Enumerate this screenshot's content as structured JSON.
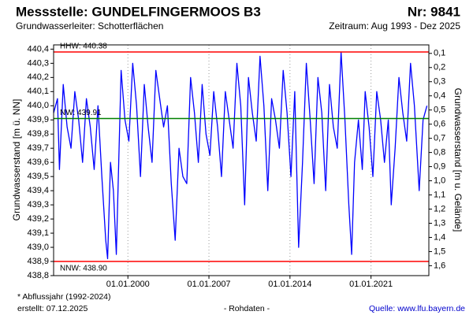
{
  "chart_data": {
    "type": "line",
    "title": "Messstelle: GUNDELFINGERMOOS B3",
    "number": "Nr: 9841",
    "aquifer": "Grundwasserleiter:  Schotterflächen",
    "period": "Zeitraum: Aug 1993 - Dez 2025",
    "y_label": "Grundwasserstand [m ü. NN]",
    "y2_label": "Grundwasserstand [m u. Gelände]",
    "footnote": "* Abflussjahr (1992-2024)",
    "created": "erstellt:  07.12.2025",
    "data_note": "- Rohdaten -",
    "source": "Quelle: www.lfu.bayern.de",
    "color": "#0000ff",
    "grid": "x",
    "xlim": [
      "1993-08-01",
      "2025-12-31"
    ],
    "xticks": [
      {
        "value": "2000-01-01",
        "label": "01.01.2000"
      },
      {
        "value": "2007-01-01",
        "label": "01.01.2007"
      },
      {
        "value": "2014-01-01",
        "label": "01.01.2014"
      },
      {
        "value": "2021-01-01",
        "label": "01.01.2021"
      }
    ],
    "ylim": [
      438.8,
      440.43
    ],
    "yticks": [
      {
        "value": 438.8,
        "label": "438,8"
      },
      {
        "value": 438.9,
        "label": "438,9"
      },
      {
        "value": 439.0,
        "label": "439,0"
      },
      {
        "value": 439.1,
        "label": "439,1"
      },
      {
        "value": 439.2,
        "label": "439,2"
      },
      {
        "value": 439.3,
        "label": "439,3"
      },
      {
        "value": 439.4,
        "label": "439,4"
      },
      {
        "value": 439.5,
        "label": "439,5"
      },
      {
        "value": 439.6,
        "label": "439,6"
      },
      {
        "value": 439.7,
        "label": "439,7"
      },
      {
        "value": 439.8,
        "label": "439,8"
      },
      {
        "value": 439.9,
        "label": "439,9"
      },
      {
        "value": 440.0,
        "label": "440,0"
      },
      {
        "value": 440.1,
        "label": "440,1"
      },
      {
        "value": 440.2,
        "label": "440,2"
      },
      {
        "value": 440.3,
        "label": "440,3"
      },
      {
        "value": 440.4,
        "label": "440,4"
      }
    ],
    "y2lim": [
      1.67,
      0.04
    ],
    "y2ticks": [
      {
        "value": 0.1,
        "label": "0,1"
      },
      {
        "value": 0.2,
        "label": "0,2"
      },
      {
        "value": 0.3,
        "label": "0,3"
      },
      {
        "value": 0.4,
        "label": "0,4"
      },
      {
        "value": 0.5,
        "label": "0,5"
      },
      {
        "value": 0.6,
        "label": "0,6"
      },
      {
        "value": 0.7,
        "label": "0,7"
      },
      {
        "value": 0.8,
        "label": "0,8"
      },
      {
        "value": 0.9,
        "label": "0,9"
      },
      {
        "value": 1.0,
        "label": "1,0"
      },
      {
        "value": 1.1,
        "label": "1,1"
      },
      {
        "value": 1.2,
        "label": "1,2"
      },
      {
        "value": 1.3,
        "label": "1,3"
      },
      {
        "value": 1.4,
        "label": "1,4"
      },
      {
        "value": 1.5,
        "label": "1,5"
      },
      {
        "value": 1.6,
        "label": "1,6"
      }
    ],
    "reference_lines": [
      {
        "label": "HHW: 440.38",
        "value": 440.38,
        "color": "#ff0000"
      },
      {
        "label": "NW: 439.91",
        "value": 439.91,
        "color": "#008000"
      },
      {
        "label": "NNW: 438.90",
        "value": 438.9,
        "color": "#ff0000"
      }
    ],
    "x": [
      "1993-08-01",
      "1993-12-01",
      "1994-02-01",
      "1994-06-01",
      "1994-10-01",
      "1995-02-01",
      "1995-06-01",
      "1995-10-01",
      "1996-02-01",
      "1996-06-01",
      "1996-10-01",
      "1997-02-01",
      "1997-06-01",
      "1997-10-01",
      "1998-02-01",
      "1998-04-01",
      "1998-07-01",
      "1998-10-01",
      "1999-01-01",
      "1999-06-01",
      "1999-10-01",
      "2000-02-01",
      "2000-06-01",
      "2000-10-01",
      "2001-02-01",
      "2001-06-01",
      "2001-10-01",
      "2002-02-01",
      "2002-06-01",
      "2002-10-01",
      "2003-02-01",
      "2003-06-01",
      "2003-10-01",
      "2004-02-01",
      "2004-06-01",
      "2004-10-01",
      "2005-02-01",
      "2005-06-01",
      "2005-10-01",
      "2006-02-01",
      "2006-06-01",
      "2006-10-01",
      "2007-02-01",
      "2007-06-01",
      "2007-10-01",
      "2008-02-01",
      "2008-06-01",
      "2008-10-01",
      "2009-02-01",
      "2009-06-01",
      "2009-10-01",
      "2010-02-01",
      "2010-06-01",
      "2010-10-01",
      "2011-02-01",
      "2011-06-01",
      "2011-10-01",
      "2012-02-01",
      "2012-06-01",
      "2012-10-01",
      "2013-02-01",
      "2013-06-01",
      "2013-10-01",
      "2014-02-01",
      "2014-06-01",
      "2014-10-01",
      "2015-02-01",
      "2015-06-01",
      "2015-10-01",
      "2016-02-01",
      "2016-06-01",
      "2016-10-01",
      "2017-02-01",
      "2017-06-01",
      "2017-10-01",
      "2018-02-01",
      "2018-06-01",
      "2018-10-01",
      "2019-02-01",
      "2019-05-01",
      "2019-08-01",
      "2019-12-01",
      "2020-04-01",
      "2020-07-01",
      "2020-11-01",
      "2021-03-01",
      "2021-07-01",
      "2021-11-01",
      "2022-03-01",
      "2022-07-01",
      "2022-10-01",
      "2023-02-01",
      "2023-06-01",
      "2023-10-01",
      "2024-02-01",
      "2024-06-01",
      "2024-10-01",
      "2025-03-01",
      "2025-07-01",
      "2025-11-01"
    ],
    "values": [
      439.95,
      440.05,
      439.55,
      440.15,
      439.85,
      439.7,
      440.1,
      439.9,
      439.6,
      440.05,
      439.85,
      439.55,
      440.0,
      439.5,
      439.05,
      438.92,
      439.6,
      439.4,
      438.95,
      440.25,
      439.9,
      439.75,
      440.3,
      440.0,
      439.5,
      440.15,
      439.85,
      439.6,
      440.25,
      440.05,
      439.85,
      440.0,
      439.45,
      439.05,
      439.7,
      439.5,
      439.45,
      440.2,
      439.95,
      439.6,
      440.15,
      439.8,
      439.65,
      440.1,
      439.85,
      439.5,
      440.1,
      439.9,
      439.7,
      440.3,
      440.0,
      439.3,
      440.2,
      439.95,
      439.75,
      440.35,
      440.0,
      439.4,
      440.05,
      439.9,
      439.7,
      440.25,
      439.95,
      439.5,
      440.1,
      439.0,
      439.6,
      440.3,
      439.9,
      439.45,
      440.2,
      439.95,
      439.4,
      440.15,
      439.85,
      439.7,
      440.38,
      439.9,
      439.3,
      438.95,
      439.6,
      439.9,
      439.55,
      440.1,
      439.85,
      439.5,
      440.1,
      439.9,
      439.6,
      439.9,
      439.3,
      439.7,
      440.2,
      439.95,
      439.75,
      440.3,
      440.0,
      439.4,
      439.9,
      440.0
    ]
  }
}
